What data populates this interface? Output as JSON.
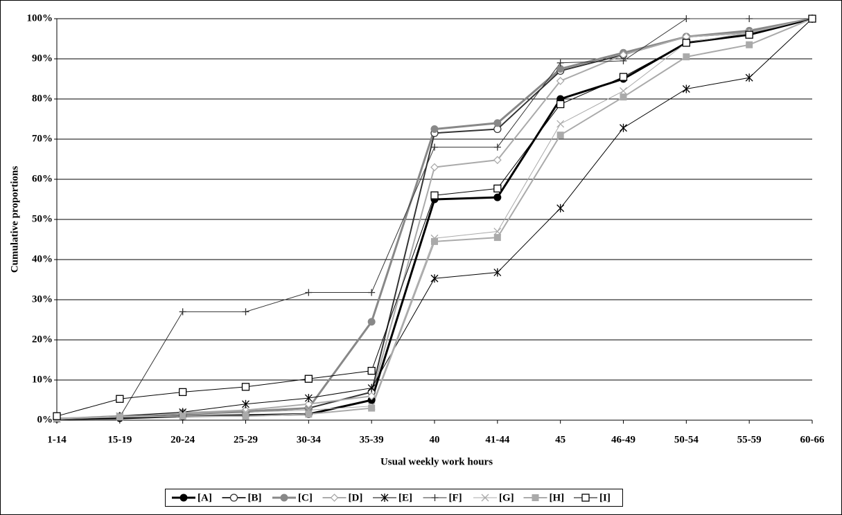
{
  "chart_data": {
    "type": "line",
    "xlabel": "Usual weekly work hours",
    "ylabel": "Cumulative proportions",
    "categories": [
      "1-14",
      "15-19",
      "20-24",
      "25-29",
      "30-34",
      "35-39",
      "40",
      "41-44",
      "45",
      "46-49",
      "50-54",
      "55-59",
      "60-66"
    ],
    "ylim": [
      0,
      100
    ],
    "yticks": [
      {
        "value": 0,
        "label": "0%"
      },
      {
        "value": 10,
        "label": "10%"
      },
      {
        "value": 20,
        "label": "20%"
      },
      {
        "value": 30,
        "label": "30%"
      },
      {
        "value": 40,
        "label": "40%"
      },
      {
        "value": 50,
        "label": "50%"
      },
      {
        "value": 60,
        "label": "60%"
      },
      {
        "value": 70,
        "label": "70%"
      },
      {
        "value": 80,
        "label": "80%"
      },
      {
        "value": 90,
        "label": "90%"
      },
      {
        "value": 100,
        "label": "100%"
      }
    ],
    "grid": true,
    "legend": "bottom",
    "series": [
      {
        "name": "[A]",
        "color": "#000000",
        "marker": "circle-filled",
        "width": 3,
        "values": [
          0.3,
          0.5,
          1,
          1.2,
          1.5,
          5,
          55,
          55.5,
          80,
          85,
          94,
          96,
          100
        ]
      },
      {
        "name": "[B]",
        "color": "#333333",
        "marker": "circle-open",
        "width": 2,
        "values": [
          0.3,
          0.8,
          1.5,
          2,
          3,
          7,
          71.5,
          72.5,
          87,
          91,
          95.5,
          96.5,
          100
        ]
      },
      {
        "name": "[C]",
        "color": "#888888",
        "marker": "circle-filled",
        "width": 3,
        "values": [
          0.3,
          1,
          1.8,
          2.2,
          3,
          24.5,
          72.5,
          74,
          87.5,
          91.5,
          95.5,
          97,
          100
        ]
      },
      {
        "name": "[D]",
        "color": "#aaaaaa",
        "marker": "diamond-open",
        "width": 2,
        "values": [
          0.3,
          1,
          1.8,
          2.5,
          4,
          6,
          63,
          64.8,
          84.5,
          91,
          95.5,
          96.5,
          100
        ]
      },
      {
        "name": "[E]",
        "color": "#000000",
        "marker": "star",
        "width": 1,
        "values": [
          0.3,
          1,
          2,
          4,
          5.5,
          8,
          35.3,
          36.8,
          52.8,
          72.8,
          82.5,
          85.3,
          100
        ]
      },
      {
        "name": "[F]",
        "color": "#333333",
        "marker": "plus",
        "width": 1,
        "values": [
          0.3,
          0.8,
          27,
          27,
          31.8,
          31.8,
          68,
          68,
          89,
          89.5,
          100,
          100,
          100
        ]
      },
      {
        "name": "[G]",
        "color": "#aaaaaa",
        "marker": "x",
        "width": 1,
        "values": [
          0.3,
          1,
          1.5,
          2,
          2.5,
          3.5,
          45.3,
          47,
          73.8,
          82,
          94,
          96.5,
          100
        ]
      },
      {
        "name": "[H]",
        "color": "#aaaaaa",
        "marker": "square-filled",
        "width": 2,
        "values": [
          0.5,
          0.8,
          1,
          1,
          1.5,
          3,
          44.5,
          45.5,
          71,
          80.5,
          90.5,
          93.5,
          100
        ]
      },
      {
        "name": "[I]",
        "color": "#000000",
        "marker": "square-open",
        "width": 1,
        "values": [
          1,
          5.3,
          7,
          8.3,
          10.3,
          12.3,
          56,
          57.7,
          78.7,
          85.5,
          94,
          96,
          100
        ]
      }
    ]
  }
}
